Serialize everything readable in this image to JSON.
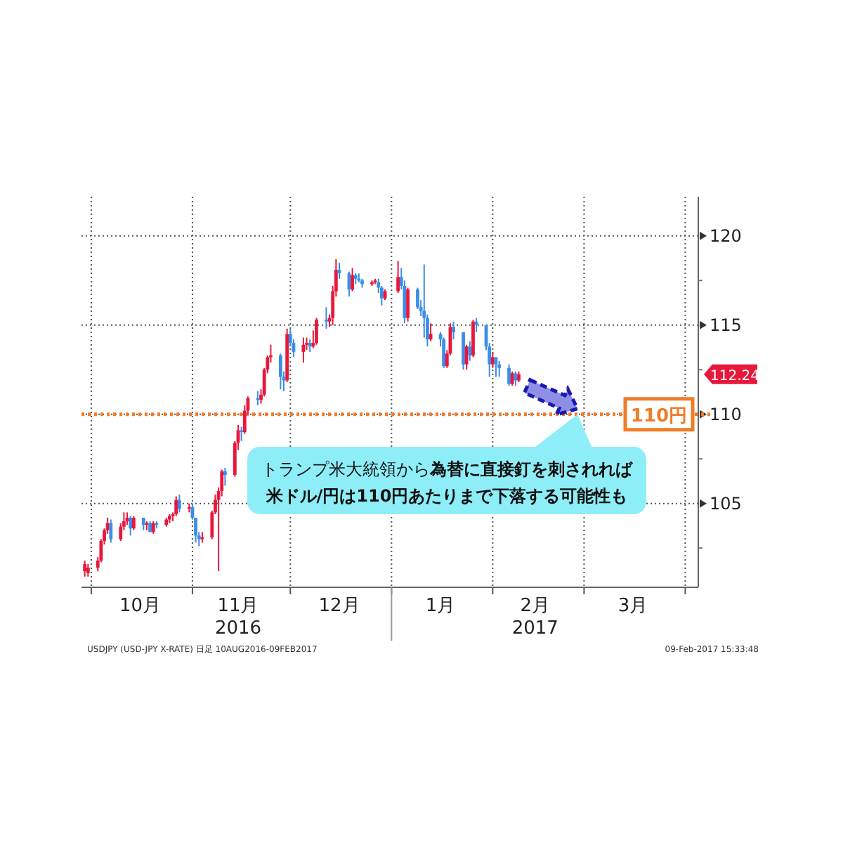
{
  "chart_data": {
    "type": "candlestick",
    "x": [
      "2016-09-29",
      "2016-09-30",
      "2016-10-03",
      "2016-10-04",
      "2016-10-05",
      "2016-10-06",
      "2016-10-07",
      "2016-10-10",
      "2016-10-11",
      "2016-10-12",
      "2016-10-13",
      "2016-10-14",
      "2016-10-17",
      "2016-10-18",
      "2016-10-19",
      "2016-10-20",
      "2016-10-21",
      "2016-10-24",
      "2016-10-25",
      "2016-10-26",
      "2016-10-27",
      "2016-10-28",
      "2016-10-31",
      "2016-11-01",
      "2016-11-02",
      "2016-11-03",
      "2016-11-04",
      "2016-11-07",
      "2016-11-08",
      "2016-11-09",
      "2016-11-10",
      "2016-11-11",
      "2016-11-14",
      "2016-11-15",
      "2016-11-16",
      "2016-11-17",
      "2016-11-18",
      "2016-11-21",
      "2016-11-22",
      "2016-11-23",
      "2016-11-24",
      "2016-11-25",
      "2016-11-28",
      "2016-11-29",
      "2016-11-30",
      "2016-12-01",
      "2016-12-02",
      "2016-12-05",
      "2016-12-06",
      "2016-12-07",
      "2016-12-08",
      "2016-12-09",
      "2016-12-12",
      "2016-12-13",
      "2016-12-14",
      "2016-12-15",
      "2016-12-16",
      "2016-12-19",
      "2016-12-20",
      "2016-12-21",
      "2016-12-22",
      "2016-12-23",
      "2016-12-26",
      "2016-12-27",
      "2016-12-28",
      "2016-12-29",
      "2016-12-30",
      "2017-01-03",
      "2017-01-04",
      "2017-01-05",
      "2017-01-06",
      "2017-01-09",
      "2017-01-10",
      "2017-01-11",
      "2017-01-12",
      "2017-01-13",
      "2017-01-16",
      "2017-01-17",
      "2017-01-18",
      "2017-01-19",
      "2017-01-20",
      "2017-01-23",
      "2017-01-24",
      "2017-01-25",
      "2017-01-26",
      "2017-01-27",
      "2017-01-30",
      "2017-01-31",
      "2017-02-01",
      "2017-02-02",
      "2017-02-03",
      "2017-02-06",
      "2017-02-07",
      "2017-02-08",
      "2017-02-09"
    ],
    "ohlc": [
      [
        101.2,
        101.8,
        100.9,
        101.6
      ],
      [
        101.1,
        101.6,
        100.9,
        101.4
      ],
      [
        101.4,
        102.0,
        101.2,
        101.8
      ],
      [
        101.8,
        103.0,
        101.7,
        102.9
      ],
      [
        102.9,
        103.6,
        102.7,
        103.5
      ],
      [
        103.5,
        104.2,
        103.3,
        103.9
      ],
      [
        103.9,
        104.1,
        102.8,
        103.0
      ],
      [
        103.0,
        103.9,
        102.9,
        103.7
      ],
      [
        103.7,
        104.5,
        103.5,
        104.0
      ],
      [
        104.0,
        104.5,
        103.8,
        104.2
      ],
      [
        104.2,
        104.3,
        103.2,
        103.6
      ],
      [
        103.6,
        104.3,
        103.5,
        104.2
      ],
      [
        104.2,
        104.2,
        103.5,
        103.8
      ],
      [
        103.8,
        104.0,
        103.5,
        103.9
      ],
      [
        103.9,
        104.0,
        103.4,
        103.4
      ],
      [
        103.4,
        104.0,
        103.3,
        103.9
      ],
      [
        103.9,
        104.0,
        103.6,
        103.8
      ],
      [
        103.8,
        104.2,
        103.7,
        104.1
      ],
      [
        104.1,
        104.4,
        103.9,
        104.3
      ],
      [
        104.3,
        104.5,
        104.0,
        104.4
      ],
      [
        104.4,
        105.4,
        104.3,
        105.2
      ],
      [
        105.2,
        105.5,
        104.5,
        104.7
      ],
      [
        104.7,
        105.0,
        104.5,
        104.8
      ],
      [
        104.8,
        105.0,
        104.1,
        104.2
      ],
      [
        104.2,
        104.2,
        102.8,
        103.2
      ],
      [
        103.2,
        103.4,
        102.6,
        103.0
      ],
      [
        103.0,
        103.4,
        102.8,
        103.1
      ],
      [
        103.1,
        104.6,
        103.0,
        104.5
      ],
      [
        104.5,
        105.5,
        104.4,
        105.2
      ],
      [
        105.2,
        105.9,
        101.2,
        105.7
      ],
      [
        105.7,
        106.9,
        105.4,
        106.8
      ],
      [
        106.8,
        107.0,
        106.0,
        106.6
      ],
      [
        106.6,
        108.5,
        106.5,
        108.4
      ],
      [
        108.4,
        109.4,
        108.0,
        109.1
      ],
      [
        109.1,
        109.3,
        108.5,
        109.0
      ],
      [
        109.0,
        110.5,
        108.9,
        110.2
      ],
      [
        110.2,
        111.0,
        110.0,
        110.9
      ],
      [
        110.9,
        111.3,
        110.5,
        110.8
      ],
      [
        110.8,
        111.4,
        110.6,
        111.1
      ],
      [
        111.1,
        112.6,
        111.0,
        112.5
      ],
      [
        112.5,
        113.3,
        112.3,
        113.2
      ],
      [
        113.2,
        113.9,
        112.9,
        113.3
      ],
      [
        113.3,
        113.4,
        111.4,
        112.1
      ],
      [
        112.1,
        112.4,
        111.3,
        111.9
      ],
      [
        111.9,
        114.8,
        111.8,
        114.5
      ],
      [
        114.5,
        114.8,
        113.8,
        114.0
      ],
      [
        114.0,
        114.2,
        113.2,
        113.5
      ],
      [
        113.5,
        114.3,
        112.9,
        113.9
      ],
      [
        113.9,
        114.3,
        113.6,
        114.0
      ],
      [
        114.0,
        114.2,
        113.5,
        113.8
      ],
      [
        113.8,
        114.7,
        113.7,
        114.0
      ],
      [
        114.0,
        115.4,
        113.9,
        115.3
      ],
      [
        115.3,
        116.0,
        114.8,
        115.2
      ],
      [
        115.2,
        115.6,
        114.9,
        115.4
      ],
      [
        115.4,
        117.2,
        115.0,
        116.9
      ],
      [
        116.9,
        118.7,
        116.6,
        118.1
      ],
      [
        118.1,
        118.5,
        117.6,
        117.9
      ],
      [
        117.9,
        118.0,
        116.6,
        117.0
      ],
      [
        117.0,
        118.2,
        116.9,
        117.8
      ],
      [
        117.8,
        117.9,
        117.3,
        117.6
      ],
      [
        117.6,
        117.9,
        117.4,
        117.5
      ],
      [
        117.5,
        117.6,
        117.1,
        117.3
      ],
      [
        117.3,
        117.5,
        117.2,
        117.4
      ],
      [
        117.4,
        117.6,
        117.3,
        117.5
      ],
      [
        117.4,
        117.6,
        116.8,
        117.1
      ],
      [
        117.1,
        117.2,
        116.1,
        116.5
      ],
      [
        116.5,
        117.0,
        116.4,
        116.9
      ],
      [
        116.9,
        118.6,
        116.8,
        117.7
      ],
      [
        117.7,
        118.2,
        117.0,
        117.2
      ],
      [
        117.2,
        117.5,
        115.1,
        115.4
      ],
      [
        115.4,
        117.1,
        115.2,
        117.0
      ],
      [
        117.0,
        117.1,
        115.9,
        116.0
      ],
      [
        116.0,
        116.4,
        115.5,
        115.8
      ],
      [
        115.8,
        118.4,
        114.3,
        115.4
      ],
      [
        115.4,
        115.6,
        113.8,
        114.2
      ],
      [
        114.2,
        115.1,
        114.1,
        114.5
      ],
      [
        114.5,
        114.6,
        113.8,
        114.2
      ],
      [
        114.2,
        114.3,
        112.6,
        112.7
      ],
      [
        112.7,
        113.6,
        112.6,
        113.4
      ],
      [
        113.4,
        115.1,
        113.3,
        114.9
      ],
      [
        114.9,
        115.2,
        114.2,
        114.6
      ],
      [
        114.6,
        114.6,
        112.5,
        112.8
      ],
      [
        112.8,
        113.9,
        112.5,
        113.8
      ],
      [
        113.8,
        114.1,
        113.0,
        113.3
      ],
      [
        113.3,
        115.3,
        113.2,
        115.2
      ],
      [
        115.2,
        115.4,
        114.6,
        115.0
      ],
      [
        115.0,
        115.0,
        113.6,
        113.8
      ],
      [
        113.8,
        114.0,
        112.1,
        112.8
      ],
      [
        112.8,
        113.5,
        112.6,
        113.2
      ],
      [
        113.2,
        113.2,
        112.1,
        112.8
      ],
      [
        112.8,
        113.0,
        112.1,
        112.6
      ],
      [
        112.6,
        112.8,
        111.6,
        111.7
      ],
      [
        111.7,
        112.4,
        111.6,
        112.3
      ],
      [
        112.3,
        112.4,
        111.6,
        111.9
      ],
      [
        111.9,
        112.4,
        111.8,
        112.24
      ]
    ],
    "colors": [
      "#e8173c",
      "#e8173c",
      "#e8173c",
      "#e8173c",
      "#e8173c",
      "#e8173c",
      "#3b8ee8",
      "#e8173c",
      "#e8173c",
      "#e8173c",
      "#3b8ee8",
      "#e8173c",
      "#3b8ee8",
      "#e8173c",
      "#3b8ee8",
      "#e8173c",
      "#3b8ee8",
      "#e8173c",
      "#e8173c",
      "#e8173c",
      "#e8173c",
      "#3b8ee8",
      "#e8173c",
      "#3b8ee8",
      "#3b8ee8",
      "#3b8ee8",
      "#e8173c",
      "#e8173c",
      "#e8173c",
      "#e8173c",
      "#e8173c",
      "#3b8ee8",
      "#e8173c",
      "#e8173c",
      "#3b8ee8",
      "#e8173c",
      "#e8173c",
      "#3b8ee8",
      "#e8173c",
      "#e8173c",
      "#e8173c",
      "#e8173c",
      "#3b8ee8",
      "#3b8ee8",
      "#e8173c",
      "#3b8ee8",
      "#3b8ee8",
      "#e8173c",
      "#e8173c",
      "#3b8ee8",
      "#e8173c",
      "#e8173c",
      "#3b8ee8",
      "#e8173c",
      "#e8173c",
      "#e8173c",
      "#3b8ee8",
      "#3b8ee8",
      "#e8173c",
      "#3b8ee8",
      "#3b8ee8",
      "#3b8ee8",
      "#e8173c",
      "#e8173c",
      "#3b8ee8",
      "#3b8ee8",
      "#e8173c",
      "#e8173c",
      "#3b8ee8",
      "#3b8ee8",
      "#e8173c",
      "#3b8ee8",
      "#3b8ee8",
      "#3b8ee8",
      "#3b8ee8",
      "#e8173c",
      "#3b8ee8",
      "#3b8ee8",
      "#e8173c",
      "#e8173c",
      "#3b8ee8",
      "#3b8ee8",
      "#e8173c",
      "#3b8ee8",
      "#e8173c",
      "#3b8ee8",
      "#3b8ee8",
      "#3b8ee8",
      "#e8173c",
      "#3b8ee8",
      "#3b8ee8",
      "#3b8ee8",
      "#e8173c",
      "#3b8ee8",
      "#e8173c"
    ],
    "xlim": [
      "2016-09-28",
      "2017-04-05"
    ],
    "xticks": [
      {
        "value": "2016-10-01",
        "label": null
      },
      {
        "value": "2016-10-16",
        "label": "10月"
      },
      {
        "value": "2016-11-01",
        "label": null
      },
      {
        "value": "2016-11-15",
        "label": "11月"
      },
      {
        "value": "2016-12-01",
        "label": null
      },
      {
        "value": "2016-12-16",
        "label": "12月"
      },
      {
        "value": "2017-01-01",
        "label": null
      },
      {
        "value": "2017-01-16",
        "label": "1月"
      },
      {
        "value": "2017-02-01",
        "label": null
      },
      {
        "value": "2017-02-14",
        "label": "2月"
      },
      {
        "value": "2017-03-01",
        "label": null
      },
      {
        "value": "2017-03-16",
        "label": "3月"
      },
      {
        "value": "2017-04-01",
        "label": null
      }
    ],
    "ylim": [
      100.3,
      122.2
    ],
    "yticks": [
      {
        "value": 102.5,
        "label": null
      },
      105,
      {
        "value": 107.5,
        "label": null
      },
      110,
      {
        "value": 112.5,
        "label": null
      },
      115,
      {
        "value": 117.5,
        "label": null
      },
      120
    ],
    "grid": true,
    "ref_lines": [
      {
        "axis": "y",
        "value": 110,
        "label": "110円",
        "color": "#f07c28",
        "line_style": "dotted"
      }
    ],
    "annotations": [
      "2016",
      "2017",
      "112.24",
      {
        "text": "トランプ米大統領から**為替に直接釘を刺されれば米ドル/円は110円あたりまで下落する可能性も**",
        "x": "2017-02-27",
        "y": 110
      },
      "USDJPY (USD-JPY X-RATE)  日足 10AUG2016-09FEB2017",
      "09-Feb-2017 15:33:48"
    ]
  }
}
